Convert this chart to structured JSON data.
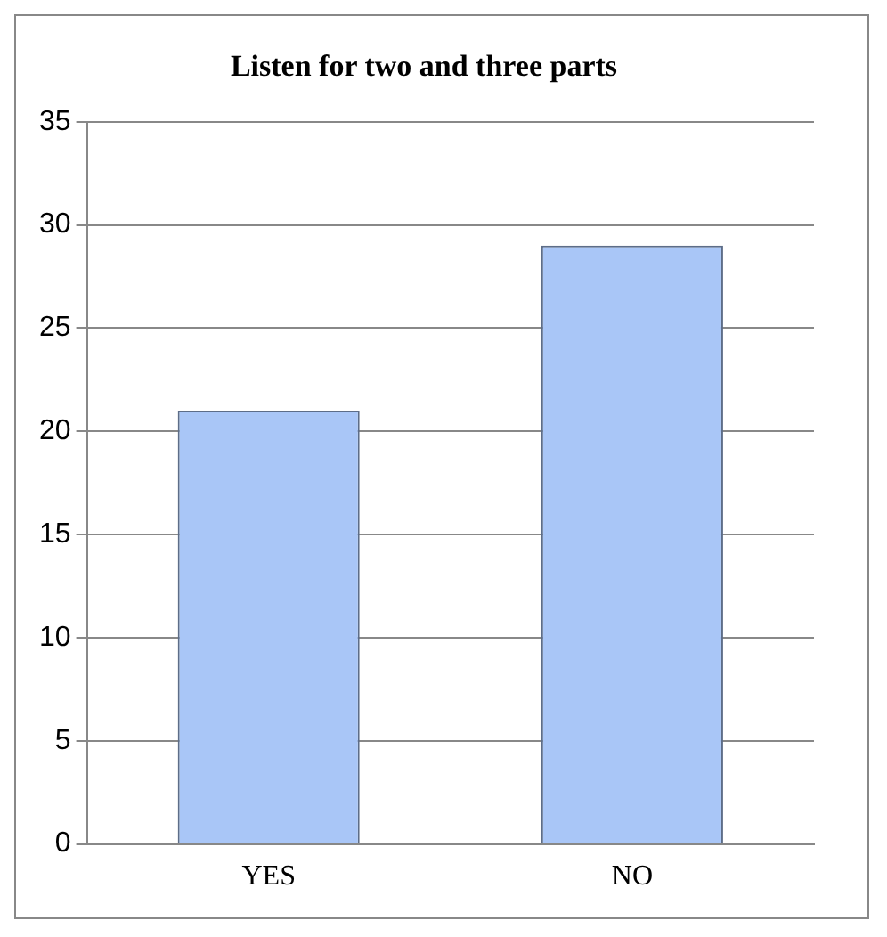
{
  "chart_data": {
    "type": "bar",
    "title": "Listen for two and three parts",
    "categories": [
      "YES",
      "NO"
    ],
    "values": [
      21,
      29
    ],
    "color": "#a9c6f7",
    "ylim": [
      0,
      35
    ],
    "yticks": [
      0,
      5,
      10,
      15,
      20,
      25,
      30,
      35
    ],
    "grid": "y"
  }
}
